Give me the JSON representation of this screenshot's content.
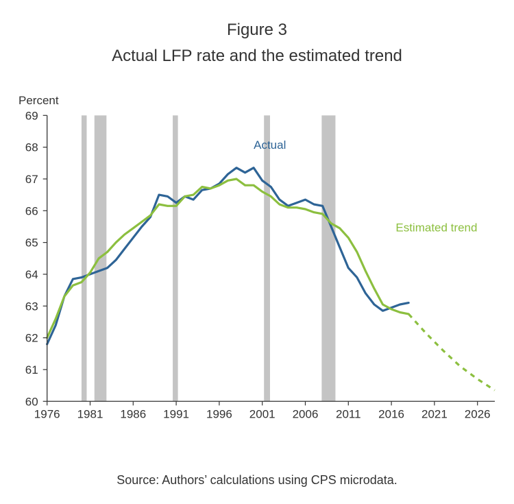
{
  "figure_number": "Figure 3",
  "title": "Actual LFP rate and the estimated trend",
  "source": "Source: Authors’ calculations using CPS microdata.",
  "colors": {
    "actual": "#2e6496",
    "trend": "#8cbf3f",
    "recession": "#c4c4c4",
    "axis": "#333333"
  },
  "chart_data": {
    "type": "line",
    "title": "Actual LFP rate and the estimated trend",
    "xlabel": "",
    "ylabel": "Percent",
    "xlim": [
      1976,
      2028
    ],
    "ylim": [
      60,
      69
    ],
    "grid": false,
    "x_ticks": [
      1976,
      1981,
      1986,
      1991,
      1996,
      2001,
      2006,
      2011,
      2016,
      2021,
      2026
    ],
    "y_ticks": [
      60,
      61,
      62,
      63,
      64,
      65,
      66,
      67,
      68,
      69
    ],
    "recessions": [
      [
        1980.0,
        1980.6
      ],
      [
        1981.5,
        1982.9
      ],
      [
        1990.6,
        1991.2
      ],
      [
        2001.2,
        2001.9
      ],
      [
        2007.9,
        2009.5
      ]
    ],
    "series": [
      {
        "name": "Actual",
        "label": "Actual",
        "style": "solid",
        "x": [
          1976,
          1977,
          1978,
          1979,
          1980,
          1981,
          1982,
          1983,
          1984,
          1985,
          1986,
          1987,
          1988,
          1989,
          1990,
          1991,
          1992,
          1993,
          1994,
          1995,
          1996,
          1997,
          1998,
          1999,
          2000,
          2001,
          2002,
          2003,
          2004,
          2005,
          2006,
          2007,
          2008,
          2009,
          2010,
          2011,
          2012,
          2013,
          2014,
          2015,
          2016,
          2017,
          2018
        ],
        "values": [
          61.8,
          62.4,
          63.3,
          63.85,
          63.9,
          64.0,
          64.1,
          64.2,
          64.45,
          64.8,
          65.15,
          65.5,
          65.8,
          66.5,
          66.45,
          66.25,
          66.45,
          66.35,
          66.65,
          66.7,
          66.85,
          67.15,
          67.35,
          67.2,
          67.35,
          66.95,
          66.75,
          66.35,
          66.15,
          66.25,
          66.35,
          66.2,
          66.15,
          65.5,
          64.85,
          64.2,
          63.9,
          63.4,
          63.05,
          62.85,
          62.95,
          63.05,
          63.1
        ]
      },
      {
        "name": "Estimated trend",
        "label": "Estimated trend",
        "style": "solid",
        "x": [
          1976,
          1977,
          1978,
          1979,
          1980,
          1981,
          1982,
          1983,
          1984,
          1985,
          1986,
          1987,
          1988,
          1989,
          1990,
          1991,
          1992,
          1993,
          1994,
          1995,
          1996,
          1997,
          1998,
          1999,
          2000,
          2001,
          2002,
          2003,
          2004,
          2005,
          2006,
          2007,
          2008,
          2009,
          2010,
          2011,
          2012,
          2013,
          2014,
          2015,
          2016,
          2017,
          2018
        ],
        "values": [
          62.0,
          62.6,
          63.3,
          63.65,
          63.75,
          64.05,
          64.5,
          64.7,
          65.0,
          65.25,
          65.45,
          65.65,
          65.85,
          66.2,
          66.15,
          66.15,
          66.45,
          66.5,
          66.75,
          66.7,
          66.8,
          66.95,
          67.0,
          66.8,
          66.8,
          66.6,
          66.45,
          66.2,
          66.1,
          66.1,
          66.05,
          65.95,
          65.9,
          65.6,
          65.45,
          65.15,
          64.7,
          64.1,
          63.55,
          63.05,
          62.9,
          62.8,
          62.75
        ]
      },
      {
        "name": "Estimated trend (projection)",
        "label": "",
        "style": "dashed",
        "x": [
          2018,
          2020,
          2022,
          2024,
          2026,
          2028
        ],
        "values": [
          62.75,
          62.15,
          61.6,
          61.1,
          60.7,
          60.35
        ]
      }
    ],
    "annotations": [
      {
        "text": "Actual",
        "x": 2000.0,
        "y": 67.95,
        "series": "Actual"
      },
      {
        "text": "Estimated trend",
        "x": 2016.5,
        "y": 65.35,
        "series": "Estimated trend"
      }
    ]
  }
}
